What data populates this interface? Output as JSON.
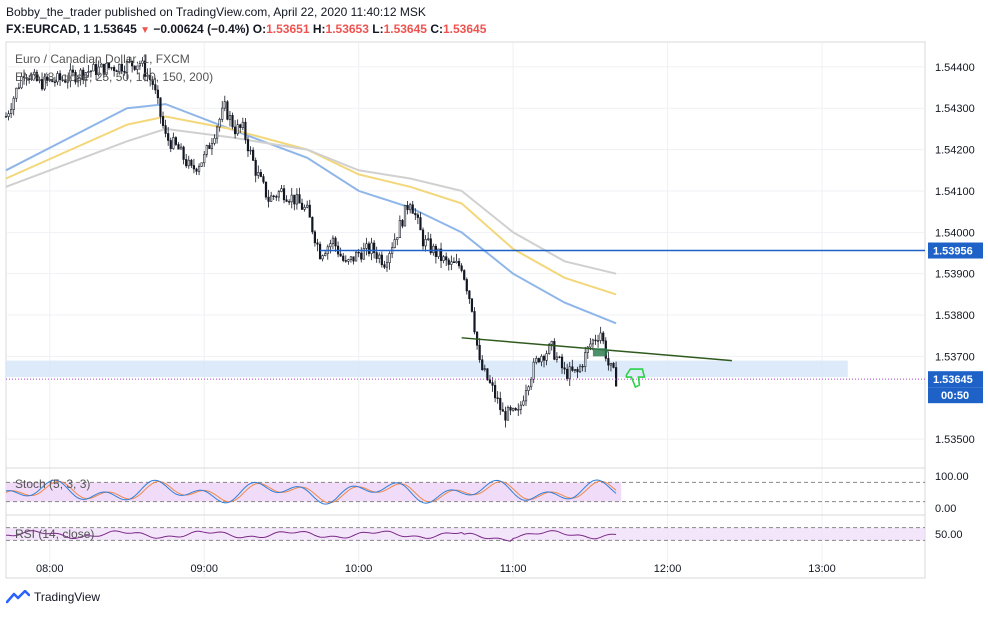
{
  "header": {
    "line1": "Bobby_the_trader published on TradingView.com, April 22, 2020 11:40:12 MSK",
    "symbol": "FX:EURCAD, 1",
    "last": "1.53645",
    "change": "−0.00624 (−0.4%)",
    "o_label": "O:",
    "o": "1.53651",
    "h_label": "H:",
    "h": "1.53653",
    "l_label": "L:",
    "l": "1.53645",
    "c_label": "C:",
    "c": "1.53645"
  },
  "legend": {
    "title": "Euro / Canadian Dollar, 1, FXCM",
    "ema": "EMA (8, close, 25, 50, 100, 150, 200)"
  },
  "colors": {
    "up_candle": "#131722",
    "down_candle": "#131722",
    "accent_line": "#1e62c8",
    "ema_fast": "#8fb6e8",
    "ema_mid": "#f3d77a",
    "ema_slow": "#d0d0d0",
    "zone": "#d6e6f8",
    "trendline": "#2e5a1e",
    "stoch_k": "#2f7fd9",
    "stoch_d": "#f0884a",
    "rsi": "#7b2a8a",
    "pane_bg": "#f0dcf8",
    "price_tag": "#1e62c8"
  },
  "footer": {
    "brand": "TradingView"
  },
  "chart_data": {
    "type": "candlestick",
    "title": "Euro / Canadian Dollar, 1, FXCM",
    "y_axis": {
      "ticks": [
        1.544,
        1.543,
        1.542,
        1.541,
        1.54,
        1.539,
        1.538,
        1.537,
        1.535
      ],
      "tick_labels": [
        "1.54400",
        "1.54300",
        "1.54200",
        "1.54100",
        "1.54000",
        "1.53900",
        "1.53800",
        "1.53700",
        "1.53500"
      ],
      "range": [
        1.5344,
        1.5446
      ]
    },
    "x_axis": {
      "range": [
        "07:43",
        "13:40"
      ],
      "ticks": [
        "08:00",
        "09:00",
        "10:00",
        "11:00",
        "12:00",
        "13:00"
      ]
    },
    "price_tags": [
      {
        "value": 1.53956,
        "label": "1.53956",
        "color": "#1e62c8"
      },
      {
        "value": 1.53645,
        "label": "1.53645",
        "color": "#1e62c8",
        "countdown": "00:50"
      }
    ],
    "horizontal_line": {
      "value": 1.53956,
      "from": "09:45",
      "to": "13:40"
    },
    "zone": {
      "from_value": 1.5365,
      "to_value": 1.5369,
      "from": "07:43",
      "to": "13:10"
    },
    "trendline": {
      "from": [
        "10:40",
        1.53745
      ],
      "to": [
        "12:25",
        1.5369
      ]
    },
    "price_path": [
      [
        "07:43",
        1.5428
      ],
      [
        "07:50",
        1.5439
      ],
      [
        "07:56",
        1.5436
      ],
      [
        "08:05",
        1.5437
      ],
      [
        "08:15",
        1.5439
      ],
      [
        "08:25",
        1.544
      ],
      [
        "08:35",
        1.5441
      ],
      [
        "08:40",
        1.5436
      ],
      [
        "08:45",
        1.5423
      ],
      [
        "08:50",
        1.542
      ],
      [
        "08:55",
        1.5415
      ],
      [
        "09:00",
        1.5418
      ],
      [
        "09:05",
        1.5426
      ],
      [
        "09:08",
        1.543
      ],
      [
        "09:12",
        1.5425
      ],
      [
        "09:15",
        1.5425
      ],
      [
        "09:20",
        1.5415
      ],
      [
        "09:25",
        1.5408
      ],
      [
        "09:30",
        1.541
      ],
      [
        "09:35",
        1.5408
      ],
      [
        "09:40",
        1.5405
      ],
      [
        "09:45",
        1.5395
      ],
      [
        "09:50",
        1.5398
      ],
      [
        "09:55",
        1.5392
      ],
      [
        "10:00",
        1.5395
      ],
      [
        "10:05",
        1.5396
      ],
      [
        "10:10",
        1.5393
      ],
      [
        "10:15",
        1.54
      ],
      [
        "10:20",
        1.5408
      ],
      [
        "10:25",
        1.5398
      ],
      [
        "10:30",
        1.5395
      ],
      [
        "10:35",
        1.5392
      ],
      [
        "10:40",
        1.5392
      ],
      [
        "10:44",
        1.5382
      ],
      [
        "10:47",
        1.5368
      ],
      [
        "10:52",
        1.5362
      ],
      [
        "10:56",
        1.5356
      ],
      [
        "11:02",
        1.5356
      ],
      [
        "11:05",
        1.5363
      ],
      [
        "11:10",
        1.537
      ],
      [
        "11:15",
        1.5372
      ],
      [
        "11:20",
        1.5366
      ],
      [
        "11:25",
        1.5366
      ],
      [
        "11:30",
        1.5373
      ],
      [
        "11:34",
        1.5376
      ],
      [
        "11:37",
        1.5368
      ],
      [
        "11:40",
        1.53645
      ]
    ],
    "ema_series": [
      {
        "period": "fast",
        "points": [
          [
            "07:43",
            1.5415
          ],
          [
            "08:30",
            1.543
          ],
          [
            "08:45",
            1.5431
          ],
          [
            "09:10",
            1.5425
          ],
          [
            "09:40",
            1.5418
          ],
          [
            "10:00",
            1.541
          ],
          [
            "10:20",
            1.5406
          ],
          [
            "10:40",
            1.54
          ],
          [
            "11:00",
            1.539
          ],
          [
            "11:20",
            1.5383
          ],
          [
            "11:40",
            1.5378
          ]
        ]
      },
      {
        "period": "mid",
        "points": [
          [
            "07:43",
            1.5413
          ],
          [
            "08:30",
            1.5426
          ],
          [
            "08:45",
            1.5428
          ],
          [
            "09:10",
            1.5425
          ],
          [
            "09:40",
            1.542
          ],
          [
            "10:00",
            1.5414
          ],
          [
            "10:20",
            1.5411
          ],
          [
            "10:40",
            1.5407
          ],
          [
            "11:00",
            1.5396
          ],
          [
            "11:20",
            1.5389
          ],
          [
            "11:40",
            1.5385
          ]
        ]
      },
      {
        "period": "slow",
        "points": [
          [
            "07:43",
            1.5411
          ],
          [
            "08:30",
            1.5422
          ],
          [
            "08:45",
            1.5425
          ],
          [
            "09:10",
            1.5423
          ],
          [
            "09:40",
            1.542
          ],
          [
            "10:00",
            1.5415
          ],
          [
            "10:20",
            1.5413
          ],
          [
            "10:40",
            1.541
          ],
          [
            "11:00",
            1.54
          ],
          [
            "11:20",
            1.5393
          ],
          [
            "11:40",
            1.539
          ]
        ]
      }
    ],
    "stoch": {
      "label": "Stoch (5, 3, 3)",
      "ticks": [
        100,
        0
      ],
      "tick_labels": [
        "100.00",
        "0.00"
      ],
      "bands": [
        80,
        20
      ]
    },
    "rsi": {
      "label": "RSI (14, close)",
      "ticks": [
        50
      ],
      "tick_labels": [
        "50.00"
      ],
      "bands": [
        70,
        30
      ]
    }
  }
}
